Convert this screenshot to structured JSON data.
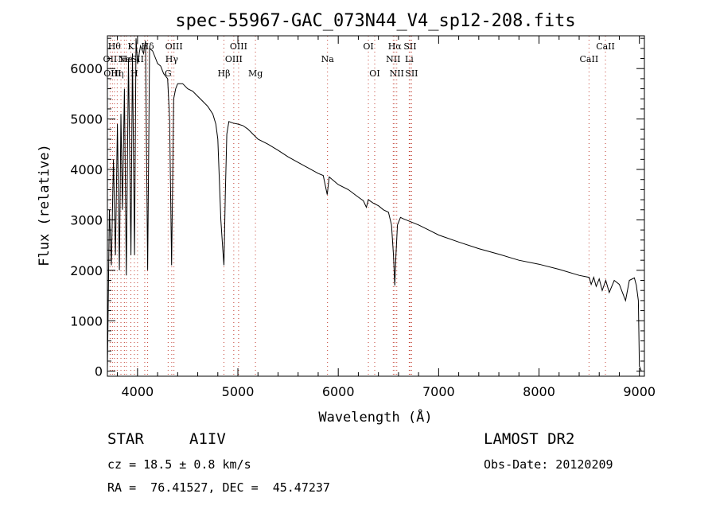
{
  "chart_data": {
    "type": "line",
    "title": "spec-55967-GAC_073N44_V4_sp12-208.fits",
    "xlabel": "Wavelength (Å)",
    "ylabel": "Flux (relative)",
    "xlim": [
      3700,
      9050
    ],
    "ylim": [
      -100,
      6650
    ],
    "xticks": [
      "4000",
      "5000",
      "6000",
      "7000",
      "8000",
      "9000"
    ],
    "yticks": [
      "0",
      "1000",
      "2000",
      "3000",
      "4000",
      "5000",
      "6000"
    ],
    "series": [
      {
        "x": [
          3700,
          3720,
          3740,
          3760,
          3780,
          3800,
          3820,
          3835,
          3850,
          3870,
          3889,
          3910,
          3935,
          3950,
          3970,
          3985,
          4000,
          4030,
          4060,
          4080,
          4101,
          4120,
          4150,
          4180,
          4200,
          4230,
          4260,
          4300,
          4320,
          4340,
          4360,
          4380,
          4400,
          4450,
          4500,
          4550,
          4600,
          4650,
          4700,
          4750,
          4780,
          4800,
          4830,
          4850,
          4861,
          4875,
          4890,
          4910,
          4950,
          5000,
          5050,
          5100,
          5150,
          5200,
          5300,
          5400,
          5500,
          5600,
          5700,
          5800,
          5850,
          5890,
          5910,
          6000,
          6100,
          6200,
          6250,
          6280,
          6300,
          6350,
          6400,
          6450,
          6500,
          6530,
          6550,
          6563,
          6575,
          6590,
          6620,
          6650,
          6700,
          6800,
          6900,
          7000,
          7200,
          7400,
          7600,
          7800,
          8000,
          8200,
          8400,
          8500,
          8520,
          8545,
          8570,
          8600,
          8630,
          8665,
          8700,
          8750,
          8800,
          8862,
          8900,
          8950,
          8970,
          8990,
          9000,
          9020
        ],
        "y": [
          0,
          3200,
          2100,
          4200,
          2300,
          4900,
          2000,
          5100,
          3200,
          5600,
          1900,
          6200,
          2300,
          6300,
          2300,
          6600,
          6100,
          6450,
          6300,
          6550,
          2000,
          6400,
          6350,
          6200,
          6100,
          6050,
          5900,
          5800,
          5000,
          2100,
          5400,
          5600,
          5700,
          5700,
          5600,
          5550,
          5450,
          5350,
          5250,
          5100,
          4900,
          4600,
          3000,
          2400,
          2100,
          3500,
          4700,
          4950,
          4920,
          4900,
          4870,
          4800,
          4700,
          4600,
          4500,
          4380,
          4250,
          4140,
          4030,
          3920,
          3880,
          3500,
          3850,
          3700,
          3600,
          3450,
          3380,
          3250,
          3400,
          3330,
          3280,
          3200,
          3150,
          2900,
          2300,
          1700,
          2300,
          2900,
          3050,
          3020,
          2980,
          2900,
          2800,
          2700,
          2560,
          2430,
          2320,
          2200,
          2120,
          2020,
          1900,
          1860,
          1720,
          1860,
          1680,
          1830,
          1600,
          1800,
          1560,
          1800,
          1720,
          1400,
          1800,
          1850,
          1700,
          1400,
          100,
          0
        ]
      }
    ],
    "line_markers": [
      {
        "x": 3727,
        "label": "OII",
        "row": 1
      },
      {
        "x": 3750,
        "label": "OIII",
        "row": 2
      },
      {
        "x": 3770,
        "label": "Hθ",
        "row": 0
      },
      {
        "x": 3798,
        "label": "Hη",
        "row": 2
      },
      {
        "x": 3835,
        "label": "",
        "row": -1
      },
      {
        "x": 3869,
        "label": "Ne",
        "row": 1
      },
      {
        "x": 3889,
        "label": "He",
        "row": 1
      },
      {
        "x": 3934,
        "label": "K",
        "row": 0
      },
      {
        "x": 3969,
        "label": "H",
        "row": 2
      },
      {
        "x": 4000,
        "label": "SII",
        "row": 1
      },
      {
        "x": 4072,
        "label": "",
        "row": -1
      },
      {
        "x": 4101,
        "label": "Hδ",
        "row": 0
      },
      {
        "x": 4305,
        "label": "G",
        "row": 2
      },
      {
        "x": 4341,
        "label": "Hγ",
        "row": 1
      },
      {
        "x": 4363,
        "label": "OIII",
        "row": 0
      },
      {
        "x": 4861,
        "label": "Hβ",
        "row": 2
      },
      {
        "x": 4959,
        "label": "OIII",
        "row": 1
      },
      {
        "x": 5007,
        "label": "OIII",
        "row": 0
      },
      {
        "x": 5175,
        "label": "Mg",
        "row": 2
      },
      {
        "x": 5893,
        "label": "Na",
        "row": 1
      },
      {
        "x": 6300,
        "label": "OI",
        "row": 0
      },
      {
        "x": 6363,
        "label": "OI",
        "row": 2
      },
      {
        "x": 6548,
        "label": "NII",
        "row": 1
      },
      {
        "x": 6563,
        "label": "Hα",
        "row": 0
      },
      {
        "x": 6583,
        "label": "NII",
        "row": 2
      },
      {
        "x": 6707,
        "label": "Li",
        "row": 1
      },
      {
        "x": 6716,
        "label": "SII",
        "row": 0
      },
      {
        "x": 6731,
        "label": "SII",
        "row": 2
      },
      {
        "x": 8498,
        "label": "CaII",
        "row": 1
      },
      {
        "x": 8662,
        "label": "CaII",
        "row": 0
      }
    ],
    "grid": false,
    "line_color": "#000000",
    "marker_color": "#c0392b"
  },
  "info": {
    "object_type": "STAR",
    "subclass": "A1IV",
    "survey": "LAMOST DR2",
    "redshift_line": "cz = 18.5 ± 0.8 km/s",
    "obs_date_line": "Obs-Date: 20120209",
    "coords_line": "RA =  76.41527, DEC =  45.47237"
  }
}
